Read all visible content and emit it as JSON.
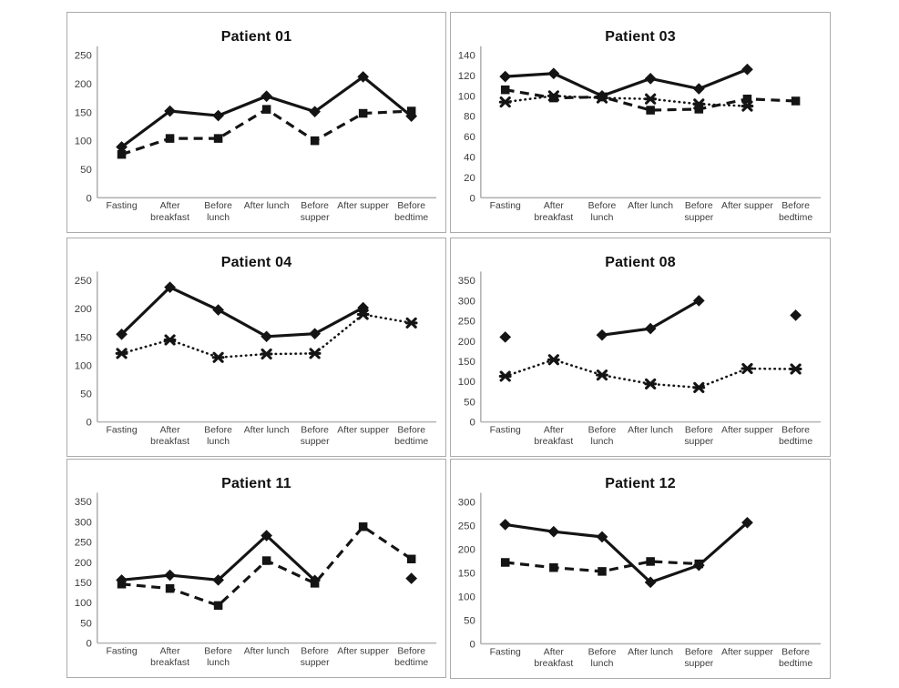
{
  "figure": {
    "description_visible_text_only": true,
    "panel_count": 6
  },
  "colors": {
    "series": "#141414",
    "axis": "#b3b3b3",
    "tick_text": "#3d3d3d",
    "title_text": "#111111",
    "panel_border": "#ababab",
    "background": "#ffffff"
  },
  "chart_data": [
    {
      "type": "line",
      "title": "Patient 01",
      "categories": [
        "Fasting",
        "After breakfast",
        "Before lunch",
        "After lunch",
        "Before supper",
        "After supper",
        "Before bedtime"
      ],
      "category_label_lines": [
        [
          "Fasting"
        ],
        [
          "After",
          "breakfast"
        ],
        [
          "Before",
          "lunch"
        ],
        [
          "After lunch"
        ],
        [
          "Before",
          "supper"
        ],
        [
          "After supper"
        ],
        [
          "Before",
          "bedtime"
        ]
      ],
      "xlabel": "",
      "ylabel": "",
      "ylim": [
        0,
        250
      ],
      "yticks": [
        0,
        50,
        100,
        150,
        200,
        250
      ],
      "grid": false,
      "legend": "none",
      "series": [
        {
          "name": "solid-diamond",
          "line_style": "solid",
          "marker": "diamond",
          "values": [
            89,
            152,
            144,
            178,
            151,
            212,
            143
          ]
        },
        {
          "name": "dashed-square",
          "line_style": "dashed",
          "marker": "square",
          "values": [
            76,
            104,
            104,
            155,
            100,
            148,
            152
          ]
        }
      ]
    },
    {
      "type": "line",
      "title": "Patient 03",
      "categories": [
        "Fasting",
        "After breakfast",
        "Before lunch",
        "After lunch",
        "Before supper",
        "After supper",
        "Before bedtime"
      ],
      "category_label_lines": [
        [
          "Fasting"
        ],
        [
          "After",
          "breakfast"
        ],
        [
          "Before",
          "lunch"
        ],
        [
          "After lunch"
        ],
        [
          "Before",
          "supper"
        ],
        [
          "After supper"
        ],
        [
          "Before",
          "bedtime"
        ]
      ],
      "xlabel": "",
      "ylabel": "",
      "ylim": [
        0,
        140
      ],
      "yticks": [
        0,
        20,
        40,
        60,
        80,
        100,
        120,
        140
      ],
      "grid": false,
      "legend": "none",
      "series": [
        {
          "name": "solid-diamond",
          "line_style": "solid",
          "marker": "diamond",
          "values": [
            119,
            122,
            100,
            117,
            107,
            126,
            null
          ]
        },
        {
          "name": "dashed-square",
          "line_style": "dashed",
          "marker": "square",
          "values": [
            106,
            98,
            99,
            86,
            87,
            97,
            95
          ]
        },
        {
          "name": "dotted-x",
          "line_style": "dotted",
          "marker": "x",
          "values": [
            94,
            100,
            98,
            97,
            92,
            90,
            null
          ]
        }
      ]
    },
    {
      "type": "line",
      "title": "Patient 04",
      "categories": [
        "Fasting",
        "After breakfast",
        "Before lunch",
        "After lunch",
        "Before supper",
        "After supper",
        "Before bedtime"
      ],
      "category_label_lines": [
        [
          "Fasting"
        ],
        [
          "After",
          "breakfast"
        ],
        [
          "Before",
          "lunch"
        ],
        [
          "After lunch"
        ],
        [
          "Before",
          "supper"
        ],
        [
          "After supper"
        ],
        [
          "Before",
          "bedtime"
        ]
      ],
      "xlabel": "",
      "ylabel": "",
      "ylim": [
        0,
        250
      ],
      "yticks": [
        0,
        50,
        100,
        150,
        200,
        250
      ],
      "grid": false,
      "legend": "none",
      "series": [
        {
          "name": "solid-diamond",
          "line_style": "solid",
          "marker": "diamond",
          "values": [
            155,
            238,
            198,
            151,
            156,
            202,
            null
          ]
        },
        {
          "name": "dotted-x",
          "line_style": "dotted",
          "marker": "x",
          "values": [
            121,
            145,
            114,
            120,
            121,
            190,
            175
          ]
        }
      ]
    },
    {
      "type": "line",
      "title": "Patient 08",
      "categories": [
        "Fasting",
        "After breakfast",
        "Before lunch",
        "After lunch",
        "Before supper",
        "After supper",
        "Before bedtime"
      ],
      "category_label_lines": [
        [
          "Fasting"
        ],
        [
          "After",
          "breakfast"
        ],
        [
          "Before",
          "lunch"
        ],
        [
          "After lunch"
        ],
        [
          "Before",
          "supper"
        ],
        [
          "After supper"
        ],
        [
          "Before",
          "bedtime"
        ]
      ],
      "xlabel": "",
      "ylabel": "",
      "ylim": [
        0,
        350
      ],
      "yticks": [
        0,
        50,
        100,
        150,
        200,
        250,
        300,
        350
      ],
      "grid": false,
      "legend": "none",
      "series": [
        {
          "name": "solid-diamond",
          "line_style": "solid",
          "marker": "diamond",
          "values": [
            210,
            null,
            215,
            231,
            300,
            null,
            264
          ]
        },
        {
          "name": "dotted-x",
          "line_style": "dotted",
          "marker": "x",
          "values": [
            113,
            154,
            116,
            94,
            85,
            132,
            131
          ]
        }
      ]
    },
    {
      "type": "line",
      "title": "Patient 11",
      "categories": [
        "Fasting",
        "After breakfast",
        "Before lunch",
        "After lunch",
        "Before supper",
        "After supper",
        "Before bedtime"
      ],
      "category_label_lines": [
        [
          "Fasting"
        ],
        [
          "After",
          "breakfast"
        ],
        [
          "Before",
          "lunch"
        ],
        [
          "After lunch"
        ],
        [
          "Before",
          "supper"
        ],
        [
          "After supper"
        ],
        [
          "Before",
          "bedtime"
        ]
      ],
      "xlabel": "",
      "ylabel": "",
      "ylim": [
        0,
        350
      ],
      "yticks": [
        0,
        50,
        100,
        150,
        200,
        250,
        300,
        350
      ],
      "grid": false,
      "legend": "none",
      "series": [
        {
          "name": "solid-diamond",
          "line_style": "solid",
          "marker": "diamond",
          "values": [
            156,
            168,
            156,
            266,
            155,
            null,
            160
          ]
        },
        {
          "name": "dashed-square",
          "line_style": "dashed",
          "marker": "square",
          "values": [
            146,
            135,
            93,
            204,
            148,
            288,
            208
          ]
        }
      ]
    },
    {
      "type": "line",
      "title": "Patient 12",
      "categories": [
        "Fasting",
        "After breakfast",
        "Before lunch",
        "After lunch",
        "Before supper",
        "After supper",
        "Before bedtime"
      ],
      "category_label_lines": [
        [
          "Fasting"
        ],
        [
          "After",
          "breakfast"
        ],
        [
          "Before",
          "lunch"
        ],
        [
          "After lunch"
        ],
        [
          "Before",
          "supper"
        ],
        [
          "After supper"
        ],
        [
          "Before",
          "bedtime"
        ]
      ],
      "xlabel": "",
      "ylabel": "",
      "ylim": [
        0,
        300
      ],
      "yticks": [
        0,
        50,
        100,
        150,
        200,
        250,
        300
      ],
      "grid": false,
      "legend": "none",
      "series": [
        {
          "name": "solid-diamond",
          "line_style": "solid",
          "marker": "diamond",
          "values": [
            252,
            237,
            226,
            130,
            166,
            256,
            null
          ]
        },
        {
          "name": "dashed-square",
          "line_style": "dashed",
          "marker": "square",
          "values": [
            172,
            161,
            153,
            174,
            169,
            null,
            null
          ]
        }
      ]
    }
  ]
}
